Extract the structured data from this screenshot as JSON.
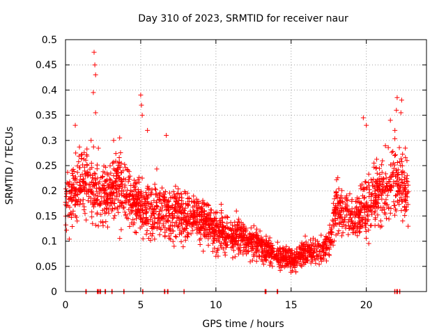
{
  "chart_data": {
    "type": "scatter",
    "title": "Day 310 of 2023, SRMTID for receiver naur",
    "xlabel": "GPS time / hours",
    "ylabel": "SRMTID / TECUs",
    "xlim": [
      0,
      24
    ],
    "ylim": [
      0,
      0.5
    ],
    "xticks": [
      0,
      5,
      10,
      15,
      20
    ],
    "yticks": [
      0,
      0.05,
      0.1,
      0.15,
      0.2,
      0.25,
      0.3,
      0.35,
      0.4,
      0.45,
      0.5
    ],
    "xtick_labels": [
      "0",
      "5",
      "10",
      "15",
      "20"
    ],
    "ytick_labels": [
      "0",
      "0.05",
      "0.1",
      "0.15",
      "0.2",
      "0.25",
      "0.3",
      "0.35",
      "0.4",
      "0.45",
      "0.5"
    ],
    "grid": true,
    "marker": "+",
    "color": "#ff0000",
    "series": [
      {
        "name": "SRMTID",
        "envelope": [
          [
            0.0,
            0.18
          ],
          [
            0.5,
            0.2
          ],
          [
            1.0,
            0.22
          ],
          [
            1.5,
            0.21
          ],
          [
            2.0,
            0.2
          ],
          [
            2.5,
            0.19
          ],
          [
            3.0,
            0.2
          ],
          [
            3.5,
            0.21
          ],
          [
            4.0,
            0.2
          ],
          [
            4.5,
            0.18
          ],
          [
            5.0,
            0.17
          ],
          [
            5.5,
            0.16
          ],
          [
            6.0,
            0.17
          ],
          [
            6.5,
            0.16
          ],
          [
            7.0,
            0.15
          ],
          [
            7.5,
            0.16
          ],
          [
            8.0,
            0.15
          ],
          [
            8.5,
            0.15
          ],
          [
            9.0,
            0.14
          ],
          [
            9.5,
            0.14
          ],
          [
            10.0,
            0.12
          ],
          [
            10.5,
            0.12
          ],
          [
            11.0,
            0.1
          ],
          [
            11.5,
            0.11
          ],
          [
            12.0,
            0.1
          ],
          [
            12.5,
            0.1
          ],
          [
            13.0,
            0.09
          ],
          [
            13.5,
            0.08
          ],
          [
            14.0,
            0.07
          ],
          [
            14.5,
            0.07
          ],
          [
            15.0,
            0.06
          ],
          [
            15.5,
            0.07
          ],
          [
            16.0,
            0.08
          ],
          [
            16.5,
            0.08
          ],
          [
            17.0,
            0.08
          ],
          [
            17.5,
            0.1
          ],
          [
            18.0,
            0.17
          ],
          [
            18.5,
            0.15
          ],
          [
            19.0,
            0.15
          ],
          [
            19.5,
            0.16
          ],
          [
            20.0,
            0.17
          ],
          [
            20.5,
            0.19
          ],
          [
            21.0,
            0.2
          ],
          [
            21.5,
            0.21
          ],
          [
            22.0,
            0.22
          ],
          [
            22.5,
            0.21
          ],
          [
            22.8,
            0.2
          ]
        ],
        "spikes": [
          [
            1.9,
            0.475
          ],
          [
            1.95,
            0.45
          ],
          [
            2.0,
            0.43
          ],
          [
            1.85,
            0.395
          ],
          [
            2.0,
            0.355
          ],
          [
            1.7,
            0.3
          ],
          [
            0.65,
            0.33
          ],
          [
            5.0,
            0.39
          ],
          [
            5.05,
            0.37
          ],
          [
            5.1,
            0.35
          ],
          [
            5.45,
            0.32
          ],
          [
            6.7,
            0.31
          ],
          [
            3.2,
            0.3
          ],
          [
            3.6,
            0.305
          ],
          [
            19.8,
            0.345
          ],
          [
            20.0,
            0.33
          ],
          [
            21.6,
            0.34
          ],
          [
            22.05,
            0.385
          ],
          [
            22.35,
            0.38
          ],
          [
            22.3,
            0.355
          ],
          [
            22.0,
            0.36
          ],
          [
            21.9,
            0.32
          ],
          [
            22.7,
            0.26
          ]
        ],
        "zero_markers": [
          1.35,
          2.15,
          2.3,
          2.65,
          3.1,
          3.9,
          5.15,
          6.6,
          6.8,
          7.9,
          13.3,
          14.1,
          21.9,
          22.05,
          22.2
        ]
      }
    ]
  }
}
